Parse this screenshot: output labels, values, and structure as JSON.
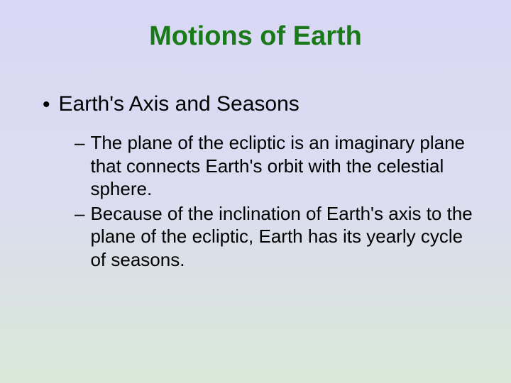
{
  "slide": {
    "title": "Motions of Earth",
    "title_color": "#1a7a1a",
    "title_fontsize": 38,
    "body_color": "#000000",
    "level1_fontsize": 30,
    "level2_fontsize": 26,
    "background_gradient_top": "#d8d8f5",
    "background_gradient_bottom": "#d8e8d8",
    "bullets": {
      "level1": {
        "marker": "•",
        "text": "Earth's Axis and Seasons"
      },
      "level2": [
        {
          "marker": "–",
          "text": "The plane of the ecliptic is an imaginary plane that connects Earth's orbit with the celestial sphere."
        },
        {
          "marker": "–",
          "text": "Because of the inclination of Earth's axis to the plane of the ecliptic, Earth has its yearly cycle of seasons."
        }
      ]
    }
  }
}
